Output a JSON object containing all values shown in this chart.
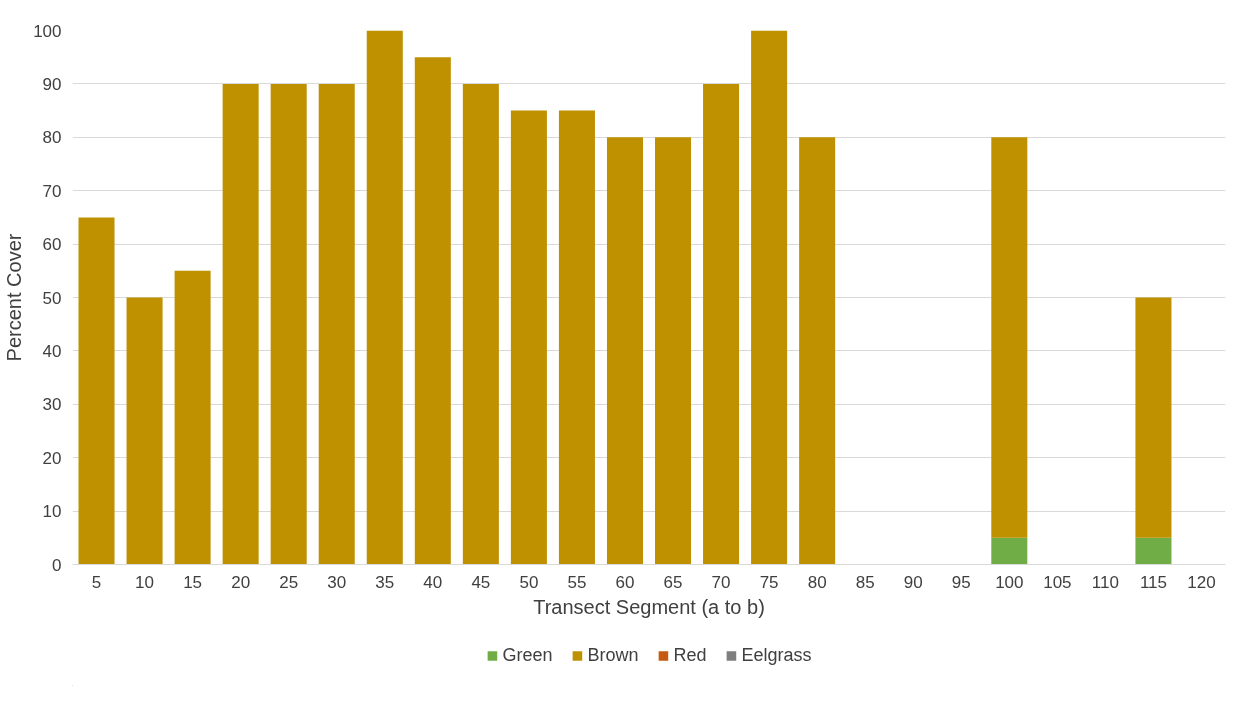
{
  "chart_data": {
    "type": "bar",
    "stacked": true,
    "xlabel": "Transect Segment (a to b)",
    "ylabel": "Percent Cover",
    "categories": [
      "5",
      "10",
      "15",
      "20",
      "25",
      "30",
      "35",
      "40",
      "45",
      "50",
      "55",
      "60",
      "65",
      "70",
      "75",
      "80",
      "85",
      "90",
      "95",
      "100",
      "105",
      "110",
      "115",
      "120"
    ],
    "series": [
      {
        "name": "Green",
        "color": "#70ad47",
        "values": [
          0,
          0,
          0,
          0,
          0,
          0,
          0,
          0,
          0,
          0,
          0,
          0,
          0,
          0,
          0,
          0,
          0,
          0,
          0,
          5,
          0,
          0,
          5,
          0
        ]
      },
      {
        "name": "Brown",
        "color": "#bf9000",
        "values": [
          65,
          50,
          55,
          90,
          90,
          90,
          100,
          95,
          90,
          85,
          85,
          80,
          80,
          90,
          100,
          80,
          0,
          0,
          0,
          75,
          0,
          0,
          45,
          0
        ]
      },
      {
        "name": "Red",
        "color": "#c55a11",
        "values": [
          0,
          0,
          0,
          0,
          0,
          0,
          0,
          0,
          0,
          0,
          0,
          0,
          0,
          0,
          0,
          0,
          0,
          0,
          0,
          0,
          0,
          0,
          0,
          0
        ]
      },
      {
        "name": "Eelgrass",
        "color": "#7f7f7f",
        "values": [
          0,
          0,
          0,
          0,
          0,
          0,
          0,
          0,
          0,
          0,
          0,
          0,
          0,
          0,
          0,
          0,
          0,
          0,
          0,
          0,
          0,
          0,
          0,
          0
        ]
      }
    ],
    "ylim": [
      0,
      100
    ],
    "yticks": [
      0,
      10,
      20,
      30,
      40,
      50,
      60,
      70,
      80,
      90,
      100
    ],
    "grid": "y",
    "legend": "bottom"
  }
}
